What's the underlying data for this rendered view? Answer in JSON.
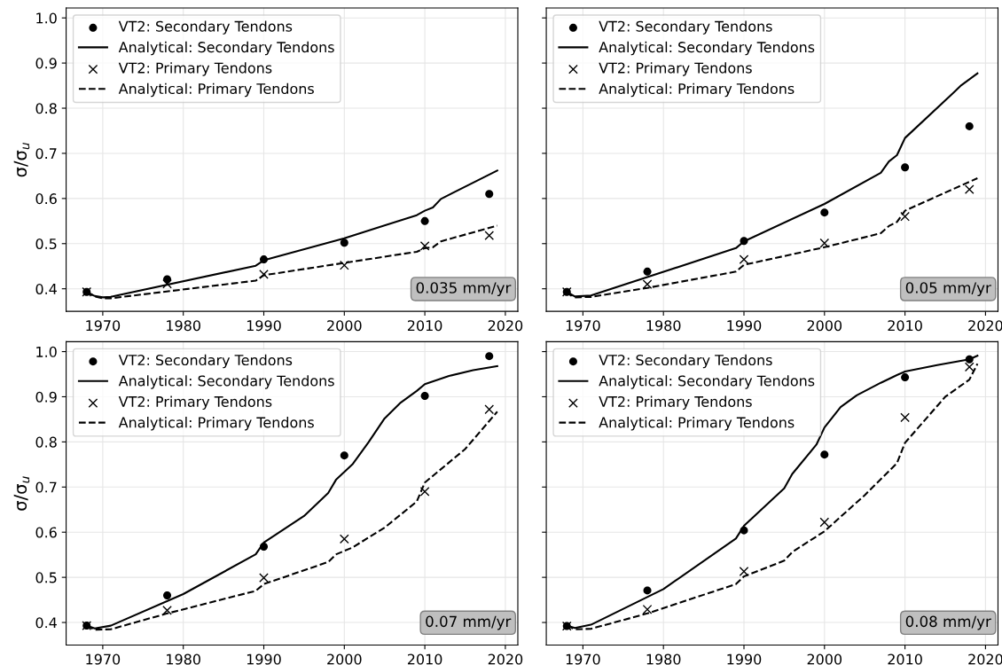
{
  "chart_data": [
    {
      "type": "line",
      "ylabel": "σ/σ$_{u}$",
      "xlim": [
        1965.45,
        2021.55
      ],
      "ylim": [
        0.35,
        1.022
      ],
      "xticks": [
        1970,
        1980,
        1990,
        2000,
        2010,
        2020
      ],
      "yticks": [
        0.4,
        0.5,
        0.6,
        0.7,
        0.8,
        0.9,
        {
          "value": 1.0,
          "label": "1.0"
        }
      ],
      "grid": true,
      "legend": "top left",
      "annotations": [
        "0.035 mm/yr"
      ],
      "series": [
        {
          "name": "VT2: Secondary Tendons",
          "type": "scatter",
          "marker": "circle",
          "color": "#000000",
          "x": [
            1968,
            1978,
            1990,
            2000,
            2010,
            2018
          ],
          "values": [
            0.393,
            0.421,
            0.465,
            0.502,
            0.55,
            0.61
          ]
        },
        {
          "name": "Analytical: Secondary Tendons",
          "line_style": "solid",
          "color": "#000000",
          "x": [
            1968,
            1969,
            1970,
            1971,
            1989,
            1990,
            2000,
            2009,
            2010,
            2011,
            2012,
            2019
          ],
          "values": [
            0.393,
            0.384,
            0.381,
            0.382,
            0.451,
            0.463,
            0.512,
            0.563,
            0.573,
            0.58,
            0.599,
            0.662
          ]
        },
        {
          "name": "VT2: Primary Tendons",
          "type": "scatter",
          "marker": "cross",
          "color": "#000000",
          "x": [
            1968,
            1978,
            1990,
            2000,
            2010,
            2018
          ],
          "values": [
            0.393,
            0.411,
            0.432,
            0.452,
            0.495,
            0.518
          ]
        },
        {
          "name": "Analytical: Primary Tendons",
          "line_style": "dashed",
          "color": "#000000",
          "x": [
            1968,
            1969,
            1970,
            1971,
            1989,
            1990,
            2009,
            2010,
            2011,
            2012,
            2019
          ],
          "values": [
            0.393,
            0.383,
            0.379,
            0.379,
            0.418,
            0.43,
            0.482,
            0.49,
            0.492,
            0.505,
            0.54
          ]
        }
      ]
    },
    {
      "type": "line",
      "xlim": [
        1965.45,
        2021.55
      ],
      "ylim": [
        0.35,
        1.022
      ],
      "xticks": [
        1970,
        1980,
        1990,
        2000,
        2010,
        2020
      ],
      "yticks": [
        0.4,
        0.5,
        0.6,
        0.7,
        0.8,
        0.9,
        1.0
      ],
      "tick_labels": "x",
      "grid": true,
      "legend": "top left",
      "annotations": [
        "0.05 mm/yr"
      ],
      "series": [
        {
          "name": "VT2: Secondary Tendons",
          "type": "scatter",
          "marker": "circle",
          "color": "#000000",
          "x": [
            1968,
            1978,
            1990,
            2000,
            2010,
            2018
          ],
          "values": [
            0.393,
            0.438,
            0.506,
            0.569,
            0.669,
            0.76
          ]
        },
        {
          "name": "Analytical: Secondary Tendons",
          "line_style": "solid",
          "color": "#000000",
          "x": [
            1968,
            1969,
            1971,
            1989,
            1990,
            2000,
            2007,
            2008,
            2009,
            2010,
            2016,
            2017,
            2019
          ],
          "values": [
            0.393,
            0.383,
            0.385,
            0.49,
            0.505,
            0.588,
            0.657,
            0.682,
            0.696,
            0.734,
            0.834,
            0.851,
            0.877
          ]
        },
        {
          "name": "VT2: Primary Tendons",
          "type": "scatter",
          "marker": "cross",
          "color": "#000000",
          "x": [
            1968,
            1978,
            1990,
            2000,
            2010,
            2018
          ],
          "values": [
            0.393,
            0.41,
            0.465,
            0.501,
            0.56,
            0.62
          ]
        },
        {
          "name": "Analytical: Primary Tendons",
          "line_style": "dashed",
          "color": "#000000",
          "x": [
            1968,
            1969,
            1971,
            1978,
            1989,
            1990,
            2000,
            2007,
            2008,
            2009,
            2010,
            2019
          ],
          "values": [
            0.393,
            0.381,
            0.382,
            0.402,
            0.438,
            0.453,
            0.492,
            0.523,
            0.539,
            0.548,
            0.573,
            0.645
          ]
        }
      ]
    },
    {
      "type": "line",
      "ylabel": "σ/σ$_{u}$",
      "xlim": [
        1965.45,
        2021.55
      ],
      "ylim": [
        0.35,
        1.022
      ],
      "xticks": [
        1970,
        1980,
        1990,
        2000,
        2010,
        2020
      ],
      "yticks": [
        0.4,
        0.5,
        0.6,
        0.7,
        0.8,
        0.9,
        {
          "value": 1.0,
          "label": "1.0"
        }
      ],
      "grid": true,
      "legend": "top left",
      "annotations": [
        "0.07 mm/yr"
      ],
      "series": [
        {
          "name": "VT2: Secondary Tendons",
          "type": "scatter",
          "marker": "circle",
          "color": "#000000",
          "x": [
            1968,
            1978,
            1990,
            2000,
            2010,
            2018
          ],
          "values": [
            0.393,
            0.46,
            0.568,
            0.77,
            0.902,
            0.99
          ]
        },
        {
          "name": "Analytical: Secondary Tendons",
          "line_style": "solid",
          "color": "#000000",
          "x": [
            1968,
            1969,
            1971,
            1980,
            1989,
            1990,
            1995,
            1998,
            1999,
            2001,
            2003,
            2005,
            2007,
            2009,
            2010,
            2013,
            2016,
            2019
          ],
          "values": [
            0.393,
            0.387,
            0.393,
            0.463,
            0.551,
            0.577,
            0.636,
            0.687,
            0.717,
            0.75,
            0.799,
            0.852,
            0.887,
            0.913,
            0.928,
            0.946,
            0.959,
            0.968
          ]
        },
        {
          "name": "VT2: Primary Tendons",
          "type": "scatter",
          "marker": "cross",
          "color": "#000000",
          "x": [
            1968,
            1978,
            1990,
            2000,
            2010,
            2018
          ],
          "values": [
            0.393,
            0.427,
            0.499,
            0.585,
            0.69,
            0.872
          ]
        },
        {
          "name": "Analytical: Primary Tendons",
          "line_style": "dashed",
          "color": "#000000",
          "x": [
            1968,
            1969,
            1971,
            1978,
            1989,
            1990,
            1998,
            1999,
            2001,
            2005,
            2009,
            2010,
            2015,
            2019
          ],
          "values": [
            0.393,
            0.384,
            0.385,
            0.42,
            0.47,
            0.485,
            0.534,
            0.551,
            0.566,
            0.61,
            0.668,
            0.71,
            0.784,
            0.867
          ]
        }
      ]
    },
    {
      "type": "line",
      "xlim": [
        1965.45,
        2021.55
      ],
      "ylim": [
        0.35,
        1.022
      ],
      "xticks": [
        1970,
        1980,
        1990,
        2000,
        2010,
        2020
      ],
      "yticks": [
        0.4,
        0.5,
        0.6,
        0.7,
        0.8,
        0.9,
        1.0
      ],
      "tick_labels": "x",
      "grid": true,
      "legend": "top left",
      "annotations": [
        "0.08 mm/yr"
      ],
      "series": [
        {
          "name": "VT2: Secondary Tendons",
          "type": "scatter",
          "marker": "circle",
          "color": "#000000",
          "x": [
            1968,
            1978,
            1990,
            2000,
            2010,
            2018
          ],
          "values": [
            0.392,
            0.471,
            0.604,
            0.772,
            0.943,
            0.983
          ]
        },
        {
          "name": "Analytical: Secondary Tendons",
          "line_style": "solid",
          "color": "#000000",
          "x": [
            1968,
            1969,
            1971,
            1980,
            1989,
            1990,
            1995,
            1996,
            1999,
            2000,
            2002,
            2004,
            2007,
            2009,
            2010,
            2014,
            2018,
            2019
          ],
          "values": [
            0.393,
            0.388,
            0.395,
            0.474,
            0.586,
            0.614,
            0.697,
            0.729,
            0.794,
            0.832,
            0.877,
            0.903,
            0.931,
            0.948,
            0.956,
            0.97,
            0.983,
            0.991
          ]
        },
        {
          "name": "VT2: Primary Tendons",
          "type": "scatter",
          "marker": "cross",
          "color": "#000000",
          "x": [
            1968,
            1978,
            1990,
            2000,
            2010,
            2018
          ],
          "values": [
            0.392,
            0.429,
            0.513,
            0.622,
            0.854,
            0.966
          ]
        },
        {
          "name": "Analytical: Primary Tendons",
          "line_style": "dashed",
          "color": "#000000",
          "x": [
            1968,
            1969,
            1971,
            1978,
            1989,
            1990,
            1995,
            1996,
            2000,
            2005,
            2009,
            2010,
            2015,
            2018,
            2019
          ],
          "values": [
            0.393,
            0.385,
            0.386,
            0.42,
            0.485,
            0.502,
            0.537,
            0.556,
            0.602,
            0.682,
            0.753,
            0.798,
            0.9,
            0.938,
            0.973
          ]
        }
      ]
    }
  ]
}
